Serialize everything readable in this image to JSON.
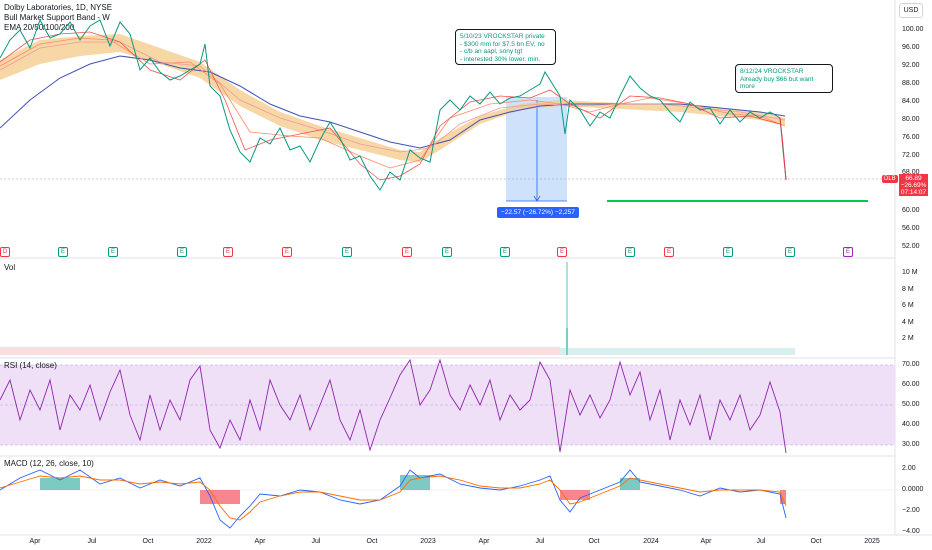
{
  "header": {
    "title": "Dolby Laboratories, 1D, NYSE",
    "indicator_1": "Bull Market Support Band - W",
    "indicator_2": "EMA 20/50/100/200",
    "currency_button": "USD"
  },
  "price_axis": [
    "100.00",
    "96.00",
    "92.00",
    "88.00",
    "84.00",
    "80.00",
    "76.00",
    "72.00",
    "68.00",
    "60.00",
    "56.00",
    "52.00"
  ],
  "vol_pane": {
    "label": "Vol",
    "axis": [
      "10 M",
      "8 M",
      "6 M",
      "4 M",
      "2 M"
    ]
  },
  "rsi_pane": {
    "label": "RSI (14, close)",
    "axis": [
      "70.00",
      "60.00",
      "50.00",
      "40.00",
      "30.00"
    ]
  },
  "macd_pane": {
    "label": "MACD (12, 26, close, 10)",
    "axis": [
      "2.00",
      "0.0000",
      "−2.00",
      "−4.00"
    ]
  },
  "time_axis": [
    "Apr",
    "Jul",
    "Oct",
    "2022",
    "Apr",
    "Jul",
    "Oct",
    "2023",
    "Apr",
    "Jul",
    "Oct",
    "2024",
    "Apr",
    "Jul",
    "Oct",
    "2025"
  ],
  "callouts": {
    "first": [
      "5/10/23 VROCKSTAR private",
      "- $300 mm for $7.5 bn EV, no",
      "- c/b an aapl, sony tgt",
      "- interested 30% lower, min."
    ],
    "second": [
      "8/12/24 VROCKSTAR",
      "Already buy $66 but want",
      "more"
    ]
  },
  "measure": {
    "text": "−22.57 (−26.72%) −2,257"
  },
  "last_price": {
    "ticker": "DLB",
    "price": "66.89",
    "change": "−26.69%",
    "countdown": "07:14:07"
  },
  "events": [
    {
      "icon": "earnings-icon",
      "glyph": "D",
      "kind": "d"
    },
    {
      "icon": "earnings-icon",
      "glyph": "E",
      "kind": "e"
    },
    {
      "icon": "earnings-icon",
      "glyph": "E",
      "kind": "e"
    },
    {
      "icon": "earnings-icon",
      "glyph": "E",
      "kind": "e"
    },
    {
      "icon": "dividend-icon",
      "glyph": "E",
      "kind": "d"
    },
    {
      "icon": "dividend-icon",
      "glyph": "E",
      "kind": "d"
    },
    {
      "icon": "earnings-icon",
      "glyph": "E",
      "kind": "e"
    },
    {
      "icon": "dividend-icon",
      "glyph": "E",
      "kind": "d"
    },
    {
      "icon": "earnings-icon",
      "glyph": "E",
      "kind": "e"
    },
    {
      "icon": "earnings-icon",
      "glyph": "E",
      "kind": "e"
    },
    {
      "icon": "dividend-icon",
      "glyph": "E",
      "kind": "d"
    },
    {
      "icon": "earnings-icon",
      "glyph": "E",
      "kind": "e"
    },
    {
      "icon": "dividend-icon",
      "glyph": "E",
      "kind": "d"
    },
    {
      "icon": "earnings-icon",
      "glyph": "E",
      "kind": "e"
    },
    {
      "icon": "earnings-icon",
      "glyph": "E",
      "kind": "e"
    },
    {
      "icon": "earnings-icon",
      "glyph": "E",
      "kind": "e"
    },
    {
      "icon": "upcoming-earnings-icon",
      "glyph": "E",
      "kind": "e2"
    }
  ],
  "colors": {
    "up": "#089981",
    "down": "#f23645",
    "ema200": "#3f51b5",
    "band_fill": "#f5c98a",
    "rsi": "#8e24aa",
    "rsi_band": "#efe0f8",
    "macd": "#2962ff",
    "signal": "#ff6d00",
    "measure": "#2962ff",
    "target_line": "#00c853"
  }
}
